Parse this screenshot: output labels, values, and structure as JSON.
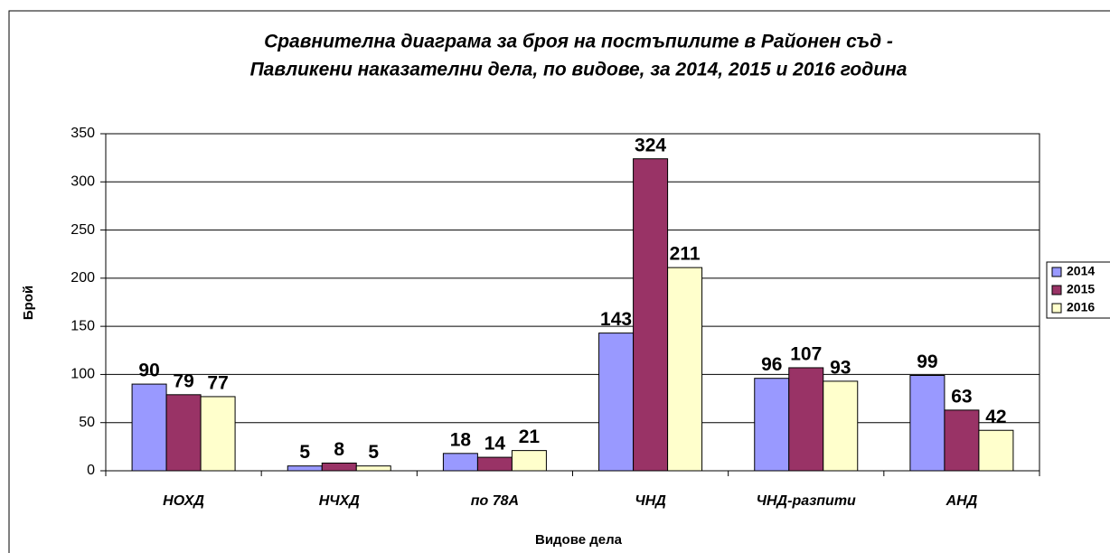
{
  "chart_data": {
    "type": "bar",
    "title": [
      "Сравнителна диаграма за броя на постъпилите в Районен съд -",
      "Павликени наказателни дела, по видове, за 2014, 2015 и 2016 година"
    ],
    "x_label": "Видове дела",
    "y_label": "Брой",
    "categories": [
      "НОХД",
      "НЧХД",
      "по 78А",
      "ЧНД",
      "ЧНД-разпити",
      "АНД"
    ],
    "series": [
      {
        "name": "2014",
        "color": "#9999ff",
        "values": [
          90,
          5,
          18,
          143,
          96,
          99
        ]
      },
      {
        "name": "2015",
        "color": "#993366",
        "values": [
          79,
          8,
          14,
          324,
          107,
          63
        ]
      },
      {
        "name": "2016",
        "color": "#ffffcc",
        "values": [
          77,
          5,
          21,
          211,
          93,
          42
        ]
      }
    ],
    "ylim": [
      0,
      350
    ],
    "yticks": [
      0,
      50,
      100,
      150,
      200,
      250,
      300,
      350
    ],
    "grid": true,
    "legend": "right"
  }
}
